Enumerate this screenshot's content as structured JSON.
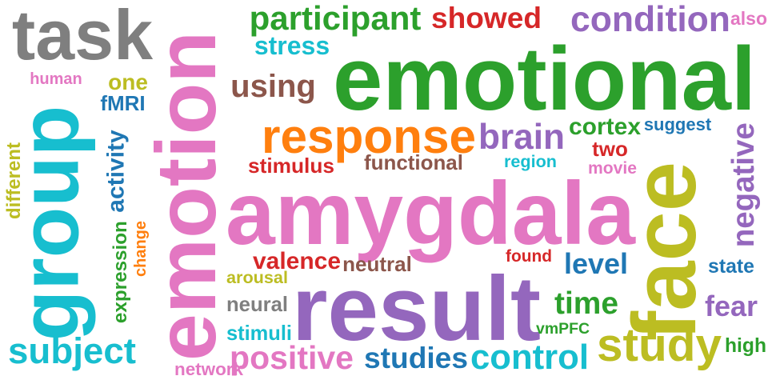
{
  "words": [
    {
      "text": "task",
      "color": "#7f7f7f"
    },
    {
      "text": "participant",
      "color": "#2ca02c"
    },
    {
      "text": "showed",
      "color": "#d62728"
    },
    {
      "text": "condition",
      "color": "#9467bd"
    },
    {
      "text": "also",
      "color": "#e377c2"
    },
    {
      "text": "stress",
      "color": "#17becf"
    },
    {
      "text": "emotional",
      "color": "#2ca02c"
    },
    {
      "text": "human",
      "color": "#e377c2"
    },
    {
      "text": "one",
      "color": "#bcbd22"
    },
    {
      "text": "fMRI",
      "color": "#1f77b4"
    },
    {
      "text": "using",
      "color": "#8c564b"
    },
    {
      "text": "response",
      "color": "#ff7f0e"
    },
    {
      "text": "brain",
      "color": "#9467bd"
    },
    {
      "text": "cortex",
      "color": "#2ca02c"
    },
    {
      "text": "suggest",
      "color": "#1f77b4"
    },
    {
      "text": "two",
      "color": "#d62728"
    },
    {
      "text": "stimulus",
      "color": "#d62728"
    },
    {
      "text": "functional",
      "color": "#8c564b"
    },
    {
      "text": "region",
      "color": "#17becf"
    },
    {
      "text": "movie",
      "color": "#e377c2"
    },
    {
      "text": "amygdala",
      "color": "#e377c2"
    },
    {
      "text": "group",
      "color": "#17becf"
    },
    {
      "text": "emotion",
      "color": "#e377c2"
    },
    {
      "text": "face",
      "color": "#bcbd22"
    },
    {
      "text": "negative",
      "color": "#9467bd"
    },
    {
      "text": "different",
      "color": "#bcbd22"
    },
    {
      "text": "activity",
      "color": "#1f77b4"
    },
    {
      "text": "expression",
      "color": "#2ca02c"
    },
    {
      "text": "change",
      "color": "#ff7f0e"
    },
    {
      "text": "valence",
      "color": "#d62728"
    },
    {
      "text": "neutral",
      "color": "#8c564b"
    },
    {
      "text": "found",
      "color": "#d62728"
    },
    {
      "text": "level",
      "color": "#1f77b4"
    },
    {
      "text": "state",
      "color": "#1f77b4"
    },
    {
      "text": "arousal",
      "color": "#bcbd22"
    },
    {
      "text": "result",
      "color": "#9467bd"
    },
    {
      "text": "neural",
      "color": "#7f7f7f"
    },
    {
      "text": "time",
      "color": "#2ca02c"
    },
    {
      "text": "fear",
      "color": "#9467bd"
    },
    {
      "text": "vmPFC",
      "color": "#2ca02c"
    },
    {
      "text": "study",
      "color": "#bcbd22"
    },
    {
      "text": "stimuli",
      "color": "#17becf"
    },
    {
      "text": "high",
      "color": "#2ca02c"
    },
    {
      "text": "subject",
      "color": "#17becf"
    },
    {
      "text": "positive",
      "color": "#e377c2"
    },
    {
      "text": "studies",
      "color": "#1f77b4"
    },
    {
      "text": "control",
      "color": "#17becf"
    },
    {
      "text": "network",
      "color": "#e377c2"
    }
  ]
}
